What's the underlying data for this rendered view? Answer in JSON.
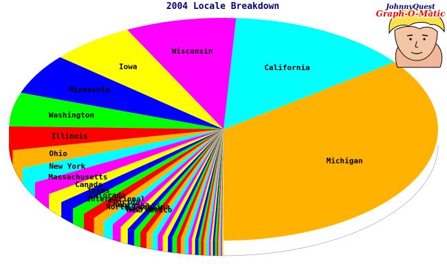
{
  "chart_data": {
    "type": "pie",
    "title": "2004 Locale Breakdown",
    "slices": [
      {
        "label": "Michigan",
        "value": 36.0,
        "color": "#ffb300"
      },
      {
        "label": "California",
        "value": 14.0,
        "color": "#00ffff"
      },
      {
        "label": "Wisconsin",
        "value": 8.5,
        "color": "#ff00ff"
      },
      {
        "label": "Iowa",
        "value": 6.5,
        "color": "#ffff00"
      },
      {
        "label": "Minnesota",
        "value": 6.0,
        "color": "#0000ff"
      },
      {
        "label": "Washington",
        "value": 5.0,
        "color": "#00ff00"
      },
      {
        "label": "Illinois",
        "value": 3.5,
        "color": "#ff0000"
      },
      {
        "label": "Ohio",
        "value": 2.7,
        "color": "#ffb300"
      },
      {
        "label": "New York",
        "value": 2.3,
        "color": "#00ffff"
      },
      {
        "label": "Massachusetts",
        "value": 2.0,
        "color": "#ff00ff"
      },
      {
        "label": "Canada",
        "value": 1.5,
        "color": "#ffff00"
      },
      {
        "label": "Texas",
        "value": 1.3,
        "color": "#0000ff"
      },
      {
        "label": "Colorado",
        "value": 1.1,
        "color": "#00ff00"
      },
      {
        "label": "International",
        "value": 1.0,
        "color": "#ff0000"
      },
      {
        "label": "Florida",
        "value": 0.9,
        "color": "#ffb300"
      },
      {
        "label": "Nebraska",
        "value": 0.8,
        "color": "#00ffff"
      },
      {
        "label": "North Carolina",
        "value": 0.7,
        "color": "#ff00ff"
      },
      {
        "label": "Maryland",
        "value": 0.6,
        "color": "#ffff00"
      },
      {
        "label": "New Mexico",
        "value": 0.55,
        "color": "#0000ff"
      },
      {
        "label": "",
        "value": 0.5,
        "color": "#00ff00"
      },
      {
        "label": "",
        "value": 0.5,
        "color": "#ff0000"
      },
      {
        "label": "",
        "value": 0.45,
        "color": "#ffb300"
      },
      {
        "label": "",
        "value": 0.45,
        "color": "#00ffff"
      },
      {
        "label": "",
        "value": 0.4,
        "color": "#ff00ff"
      },
      {
        "label": "",
        "value": 0.4,
        "color": "#ffff00"
      },
      {
        "label": "",
        "value": 0.35,
        "color": "#0000ff"
      },
      {
        "label": "",
        "value": 0.35,
        "color": "#00ff00"
      },
      {
        "label": "",
        "value": 0.3,
        "color": "#ff0000"
      },
      {
        "label": "",
        "value": 0.3,
        "color": "#ffb300"
      },
      {
        "label": "",
        "value": 0.3,
        "color": "#00ffff"
      },
      {
        "label": "",
        "value": 0.25,
        "color": "#ff00ff"
      },
      {
        "label": "",
        "value": 0.25,
        "color": "#ffff00"
      },
      {
        "label": "",
        "value": 0.25,
        "color": "#0000ff"
      },
      {
        "label": "",
        "value": 0.2,
        "color": "#00ff00"
      },
      {
        "label": "",
        "value": 0.2,
        "color": "#ff0000"
      },
      {
        "label": "",
        "value": 0.2,
        "color": "#ffb300"
      },
      {
        "label": "",
        "value": 0.2,
        "color": "#00ffff"
      },
      {
        "label": "",
        "value": 0.15,
        "color": "#ff00ff"
      },
      {
        "label": "",
        "value": 0.15,
        "color": "#ffff00"
      },
      {
        "label": "",
        "value": 0.15,
        "color": "#0000ff"
      },
      {
        "label": "",
        "value": 0.15,
        "color": "#00ff00"
      },
      {
        "label": "",
        "value": 0.1,
        "color": "#ff0000"
      },
      {
        "label": "",
        "value": 0.1,
        "color": "#ffb300"
      },
      {
        "label": "",
        "value": 0.1,
        "color": "#00ffff"
      },
      {
        "label": "",
        "value": 0.1,
        "color": "#ff00ff"
      },
      {
        "label": "",
        "value": 0.1,
        "color": "#ffff00"
      }
    ]
  },
  "logo": {
    "line1": "JohnnyQuest",
    "line2": "Graph-O-Matic",
    "icon": "boy-portrait-icon"
  }
}
